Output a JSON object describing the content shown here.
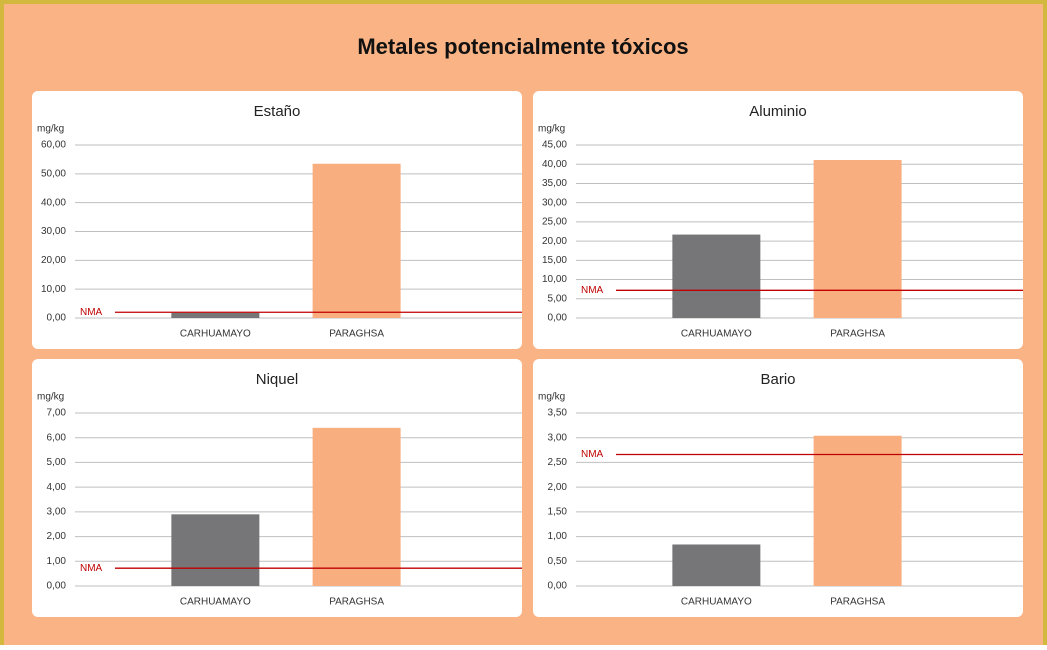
{
  "title": "Metales potencialmente tóxicos",
  "chart_data": [
    {
      "type": "bar",
      "title": "Estaño",
      "ylabel": "mg/kg",
      "categories": [
        "CARHUAMAYO",
        "PARAGHSA"
      ],
      "values": [
        1.8,
        53.5
      ],
      "colors": [
        "#767679",
        "#f9ae7f"
      ],
      "ylim": [
        0,
        60
      ],
      "yticks": [
        {
          "value": 0,
          "label": "0,00"
        },
        {
          "value": 10,
          "label": "10,00"
        },
        {
          "value": 20,
          "label": "20,00"
        },
        {
          "value": 30,
          "label": "30,00"
        },
        {
          "value": 40,
          "label": "40,00"
        },
        {
          "value": 50,
          "label": "50,00"
        },
        {
          "value": 60,
          "label": "60,00"
        }
      ],
      "grid": true,
      "reference_line": {
        "label": "NMA",
        "value": 2,
        "color": "#c00000"
      }
    },
    {
      "type": "bar",
      "title": "Aluminio",
      "ylabel": "mg/kg",
      "categories": [
        "CARHUAMAYO",
        "PARAGHSA"
      ],
      "values": [
        21.7,
        41.1
      ],
      "colors": [
        "#767679",
        "#f9ae7f"
      ],
      "ylim": [
        0,
        45
      ],
      "yticks": [
        {
          "value": 0,
          "label": "0,00"
        },
        {
          "value": 5,
          "label": "5,00"
        },
        {
          "value": 10,
          "label": "10,00"
        },
        {
          "value": 15,
          "label": "15,00"
        },
        {
          "value": 20,
          "label": "20,00"
        },
        {
          "value": 25,
          "label": "25,00"
        },
        {
          "value": 30,
          "label": "30,00"
        },
        {
          "value": 35,
          "label": "35,00"
        },
        {
          "value": 40,
          "label": "40,00"
        },
        {
          "value": 45,
          "label": "45,00"
        }
      ],
      "grid": true,
      "reference_line": {
        "label": "NMA",
        "value": 7.2,
        "color": "#c00000"
      }
    },
    {
      "type": "bar",
      "title": "Niquel",
      "ylabel": "mg/kg",
      "categories": [
        "CARHUAMAYO",
        "PARAGHSA"
      ],
      "values": [
        2.9,
        6.4
      ],
      "colors": [
        "#767679",
        "#f9ae7f"
      ],
      "ylim": [
        0,
        7
      ],
      "yticks": [
        {
          "value": 0,
          "label": "0,00"
        },
        {
          "value": 1,
          "label": "1,00"
        },
        {
          "value": 2,
          "label": "2,00"
        },
        {
          "value": 3,
          "label": "3,00"
        },
        {
          "value": 4,
          "label": "4,00"
        },
        {
          "value": 5,
          "label": "5,00"
        },
        {
          "value": 6,
          "label": "6,00"
        },
        {
          "value": 7,
          "label": "7,00"
        }
      ],
      "grid": true,
      "reference_line": {
        "label": "NMA",
        "value": 0.72,
        "color": "#c00000"
      }
    },
    {
      "type": "bar",
      "title": "Bario",
      "ylabel": "mg/kg",
      "categories": [
        "CARHUAMAYO",
        "PARAGHSA"
      ],
      "values": [
        0.84,
        3.04
      ],
      "colors": [
        "#767679",
        "#f9ae7f"
      ],
      "ylim": [
        0,
        3.5
      ],
      "yticks": [
        {
          "value": 0,
          "label": "0,00"
        },
        {
          "value": 0.5,
          "label": "0,50"
        },
        {
          "value": 1,
          "label": "1,00"
        },
        {
          "value": 1.5,
          "label": "1,50"
        },
        {
          "value": 2,
          "label": "2,00"
        },
        {
          "value": 2.5,
          "label": "2,50"
        },
        {
          "value": 3,
          "label": "3,00"
        },
        {
          "value": 3.5,
          "label": "3,50"
        }
      ],
      "grid": true,
      "reference_line": {
        "label": "NMA",
        "value": 2.66,
        "color": "#c00000"
      }
    }
  ]
}
